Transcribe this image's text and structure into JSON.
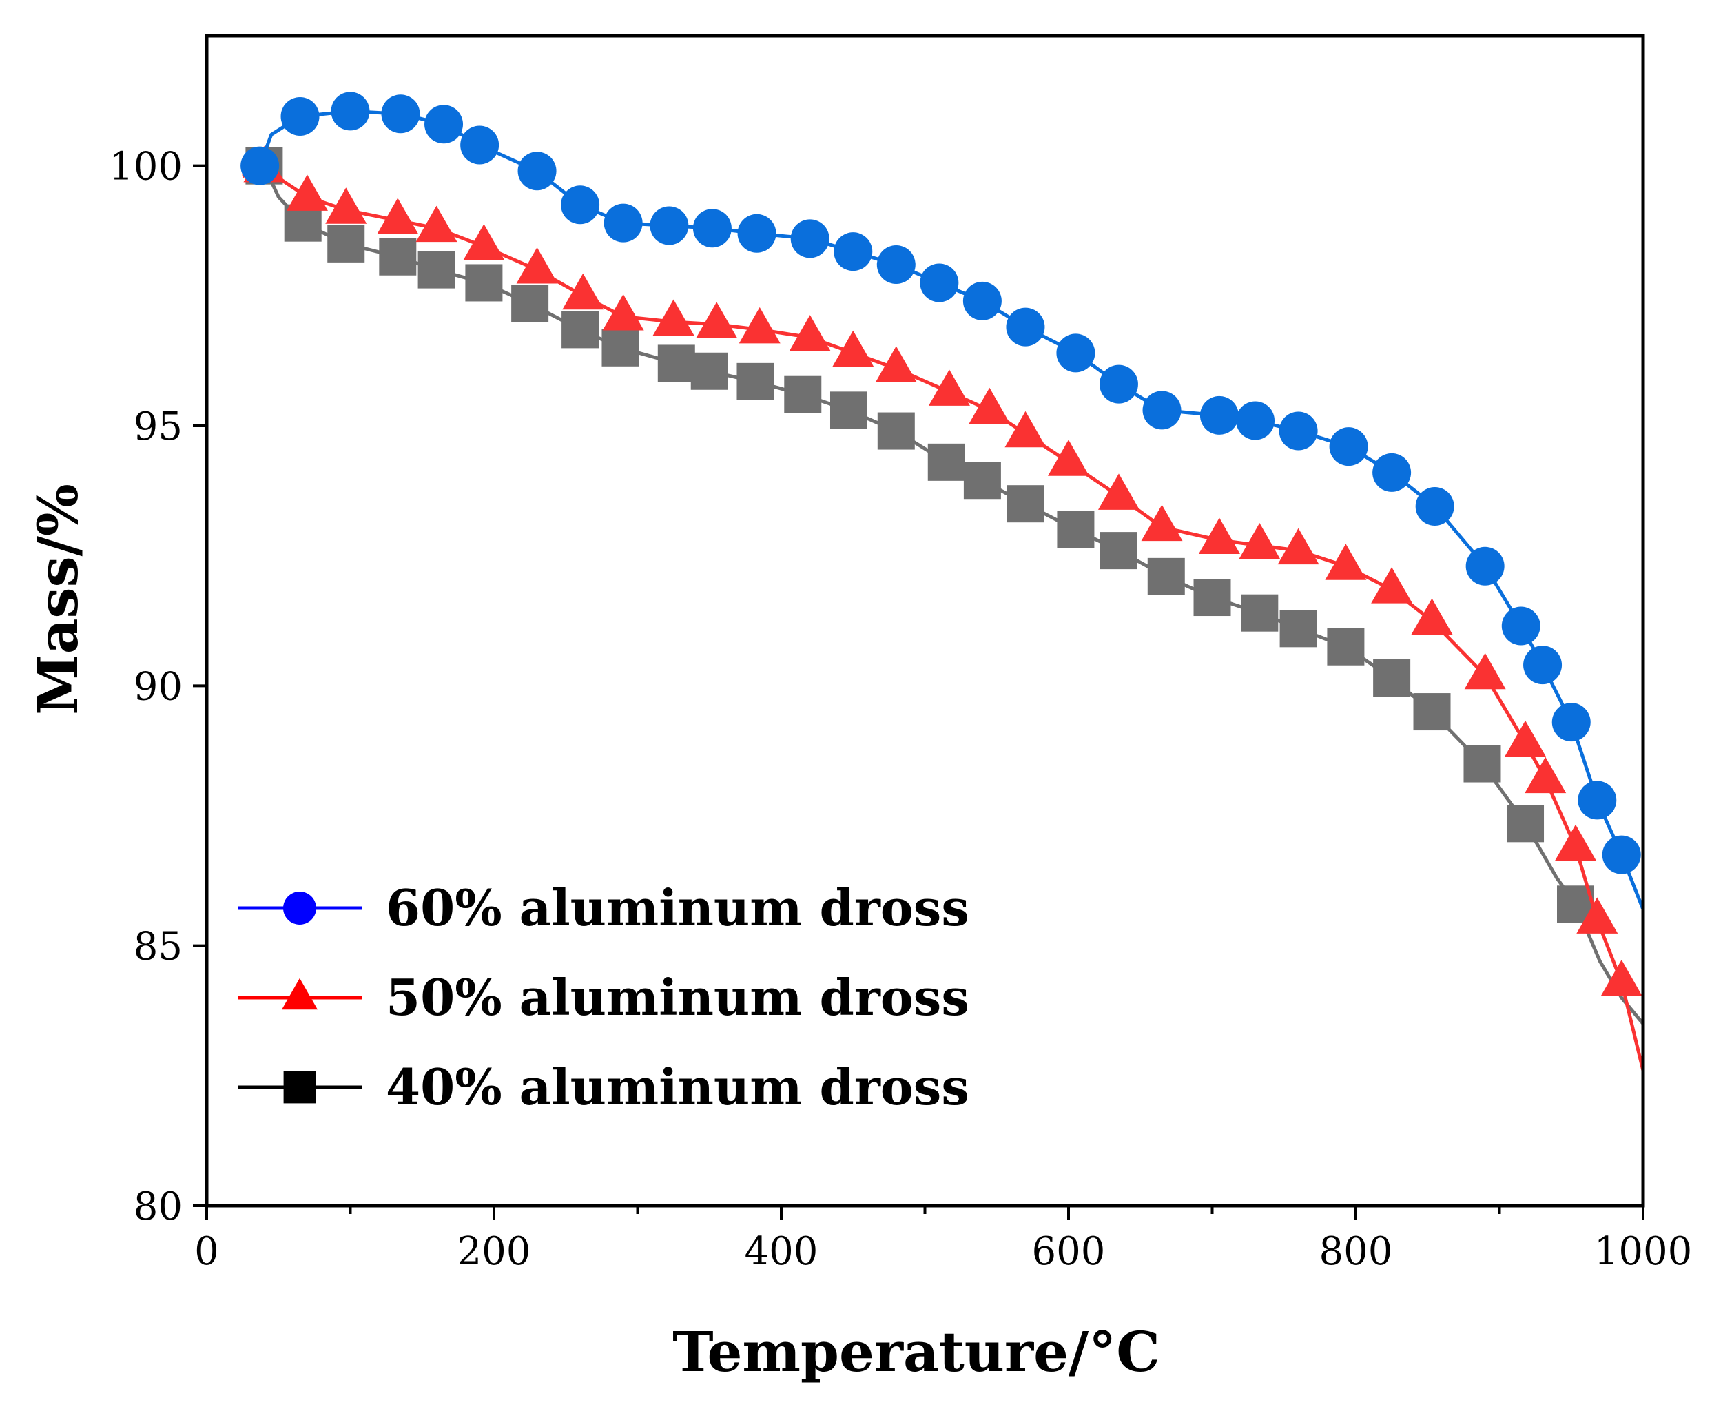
{
  "chart_data": {
    "type": "line",
    "title": "",
    "xlabel": "Temperature/°C",
    "ylabel": "Mass/%",
    "xlim": [
      0,
      1000
    ],
    "ylim": [
      80,
      102.5
    ],
    "x_ticks": [
      0,
      200,
      400,
      600,
      800,
      1000
    ],
    "x_minor_ticks": [
      100,
      300,
      500,
      700,
      900
    ],
    "y_ticks": [
      80,
      85,
      90,
      95,
      100
    ],
    "grid": false,
    "legend_position": "bottom-left",
    "series": [
      {
        "name": "60% aluminum dross",
        "color": "#0a6fdc",
        "legend_color": "#0000ff",
        "marker": "circle",
        "line": [
          [
            37,
            100.0
          ],
          [
            45,
            100.6
          ],
          [
            65,
            100.95
          ],
          [
            100,
            101.05
          ],
          [
            135,
            101.0
          ],
          [
            165,
            100.8
          ],
          [
            190,
            100.4
          ],
          [
            230,
            99.9
          ],
          [
            260,
            99.25
          ],
          [
            290,
            98.9
          ],
          [
            322,
            98.85
          ],
          [
            352,
            98.8
          ],
          [
            383,
            98.7
          ],
          [
            420,
            98.6
          ],
          [
            450,
            98.35
          ],
          [
            480,
            98.1
          ],
          [
            510,
            97.75
          ],
          [
            540,
            97.4
          ],
          [
            570,
            96.9
          ],
          [
            605,
            96.4
          ],
          [
            635,
            95.8
          ],
          [
            665,
            95.3
          ],
          [
            705,
            95.2
          ],
          [
            730,
            95.1
          ],
          [
            760,
            94.9
          ],
          [
            795,
            94.6
          ],
          [
            825,
            94.1
          ],
          [
            855,
            93.45
          ],
          [
            890,
            92.3
          ],
          [
            915,
            91.15
          ],
          [
            930,
            90.4
          ],
          [
            950,
            89.3
          ],
          [
            968,
            87.8
          ],
          [
            985,
            86.75
          ],
          [
            1000,
            85.7
          ]
        ],
        "markers": [
          [
            37,
            100.0
          ],
          [
            65,
            100.95
          ],
          [
            100,
            101.05
          ],
          [
            135,
            101.0
          ],
          [
            165,
            100.8
          ],
          [
            190,
            100.4
          ],
          [
            230,
            99.9
          ],
          [
            260,
            99.25
          ],
          [
            290,
            98.9
          ],
          [
            322,
            98.85
          ],
          [
            352,
            98.8
          ],
          [
            383,
            98.7
          ],
          [
            420,
            98.6
          ],
          [
            450,
            98.35
          ],
          [
            480,
            98.1
          ],
          [
            510,
            97.75
          ],
          [
            540,
            97.4
          ],
          [
            570,
            96.9
          ],
          [
            605,
            96.4
          ],
          [
            635,
            95.8
          ],
          [
            665,
            95.3
          ],
          [
            705,
            95.2
          ],
          [
            730,
            95.1
          ],
          [
            760,
            94.9
          ],
          [
            795,
            94.6
          ],
          [
            825,
            94.1
          ],
          [
            855,
            93.45
          ],
          [
            890,
            92.3
          ],
          [
            915,
            91.15
          ],
          [
            930,
            90.4
          ],
          [
            950,
            89.3
          ],
          [
            968,
            87.8
          ],
          [
            985,
            86.75
          ]
        ]
      },
      {
        "name": "50% aluminum dross",
        "color": "#fa3232",
        "legend_color": "#ff0000",
        "marker": "triangle",
        "line": [
          [
            25,
            99.8
          ],
          [
            40,
            99.95
          ],
          [
            70,
            99.4
          ],
          [
            97,
            99.15
          ],
          [
            133,
            98.95
          ],
          [
            160,
            98.8
          ],
          [
            193,
            98.45
          ],
          [
            230,
            98.0
          ],
          [
            262,
            97.5
          ],
          [
            290,
            97.1
          ],
          [
            325,
            97.0
          ],
          [
            355,
            96.95
          ],
          [
            385,
            96.85
          ],
          [
            420,
            96.7
          ],
          [
            450,
            96.4
          ],
          [
            480,
            96.1
          ],
          [
            517,
            95.65
          ],
          [
            545,
            95.3
          ],
          [
            570,
            94.85
          ],
          [
            600,
            94.3
          ],
          [
            635,
            93.65
          ],
          [
            665,
            93.05
          ],
          [
            705,
            92.8
          ],
          [
            733,
            92.7
          ],
          [
            760,
            92.6
          ],
          [
            793,
            92.3
          ],
          [
            825,
            91.85
          ],
          [
            853,
            91.25
          ],
          [
            890,
            90.2
          ],
          [
            918,
            88.9
          ],
          [
            932,
            88.2
          ],
          [
            953,
            86.9
          ],
          [
            968,
            85.5
          ],
          [
            985,
            84.3
          ],
          [
            1000,
            82.6
          ]
        ],
        "markers": [
          [
            40,
            99.95
          ],
          [
            70,
            99.4
          ],
          [
            97,
            99.15
          ],
          [
            133,
            98.95
          ],
          [
            160,
            98.8
          ],
          [
            193,
            98.45
          ],
          [
            230,
            98.0
          ],
          [
            262,
            97.5
          ],
          [
            290,
            97.1
          ],
          [
            325,
            97.0
          ],
          [
            355,
            96.95
          ],
          [
            385,
            96.85
          ],
          [
            420,
            96.7
          ],
          [
            450,
            96.4
          ],
          [
            480,
            96.1
          ],
          [
            517,
            95.65
          ],
          [
            545,
            95.3
          ],
          [
            570,
            94.85
          ],
          [
            600,
            94.3
          ],
          [
            635,
            93.65
          ],
          [
            665,
            93.05
          ],
          [
            705,
            92.8
          ],
          [
            733,
            92.7
          ],
          [
            760,
            92.6
          ],
          [
            793,
            92.3
          ],
          [
            825,
            91.85
          ],
          [
            853,
            91.25
          ],
          [
            890,
            90.2
          ],
          [
            918,
            88.9
          ],
          [
            932,
            88.2
          ],
          [
            953,
            86.9
          ],
          [
            968,
            85.5
          ],
          [
            985,
            84.3
          ]
        ]
      },
      {
        "name": "40% aluminum dross",
        "color": "#707070",
        "legend_color": "#000000",
        "marker": "square",
        "line": [
          [
            40,
            100.0
          ],
          [
            50,
            99.4
          ],
          [
            67,
            98.9
          ],
          [
            97,
            98.5
          ],
          [
            133,
            98.25
          ],
          [
            160,
            98.0
          ],
          [
            193,
            97.75
          ],
          [
            225,
            97.35
          ],
          [
            260,
            96.85
          ],
          [
            288,
            96.5
          ],
          [
            327,
            96.2
          ],
          [
            350,
            96.05
          ],
          [
            382,
            95.85
          ],
          [
            415,
            95.6
          ],
          [
            447,
            95.3
          ],
          [
            480,
            94.9
          ],
          [
            515,
            94.3
          ],
          [
            540,
            93.95
          ],
          [
            570,
            93.5
          ],
          [
            605,
            93.0
          ],
          [
            635,
            92.6
          ],
          [
            668,
            92.1
          ],
          [
            700,
            91.7
          ],
          [
            733,
            91.4
          ],
          [
            760,
            91.1
          ],
          [
            793,
            90.75
          ],
          [
            825,
            90.15
          ],
          [
            853,
            89.5
          ],
          [
            888,
            88.5
          ],
          [
            918,
            87.35
          ],
          [
            940,
            86.3
          ],
          [
            953,
            85.8
          ],
          [
            970,
            84.7
          ],
          [
            985,
            84.0
          ],
          [
            1000,
            83.5
          ]
        ],
        "markers": [
          [
            40,
            100.0
          ],
          [
            67,
            98.9
          ],
          [
            97,
            98.5
          ],
          [
            133,
            98.25
          ],
          [
            160,
            98.0
          ],
          [
            193,
            97.75
          ],
          [
            225,
            97.35
          ],
          [
            260,
            96.85
          ],
          [
            288,
            96.5
          ],
          [
            327,
            96.2
          ],
          [
            350,
            96.05
          ],
          [
            382,
            95.85
          ],
          [
            415,
            95.6
          ],
          [
            447,
            95.3
          ],
          [
            480,
            94.9
          ],
          [
            515,
            94.3
          ],
          [
            540,
            93.95
          ],
          [
            570,
            93.5
          ],
          [
            605,
            93.0
          ],
          [
            635,
            92.6
          ],
          [
            668,
            92.1
          ],
          [
            700,
            91.7
          ],
          [
            733,
            91.4
          ],
          [
            760,
            91.1
          ],
          [
            793,
            90.75
          ],
          [
            825,
            90.15
          ],
          [
            853,
            89.5
          ],
          [
            888,
            88.5
          ],
          [
            918,
            87.35
          ],
          [
            953,
            85.8
          ]
        ]
      }
    ]
  }
}
